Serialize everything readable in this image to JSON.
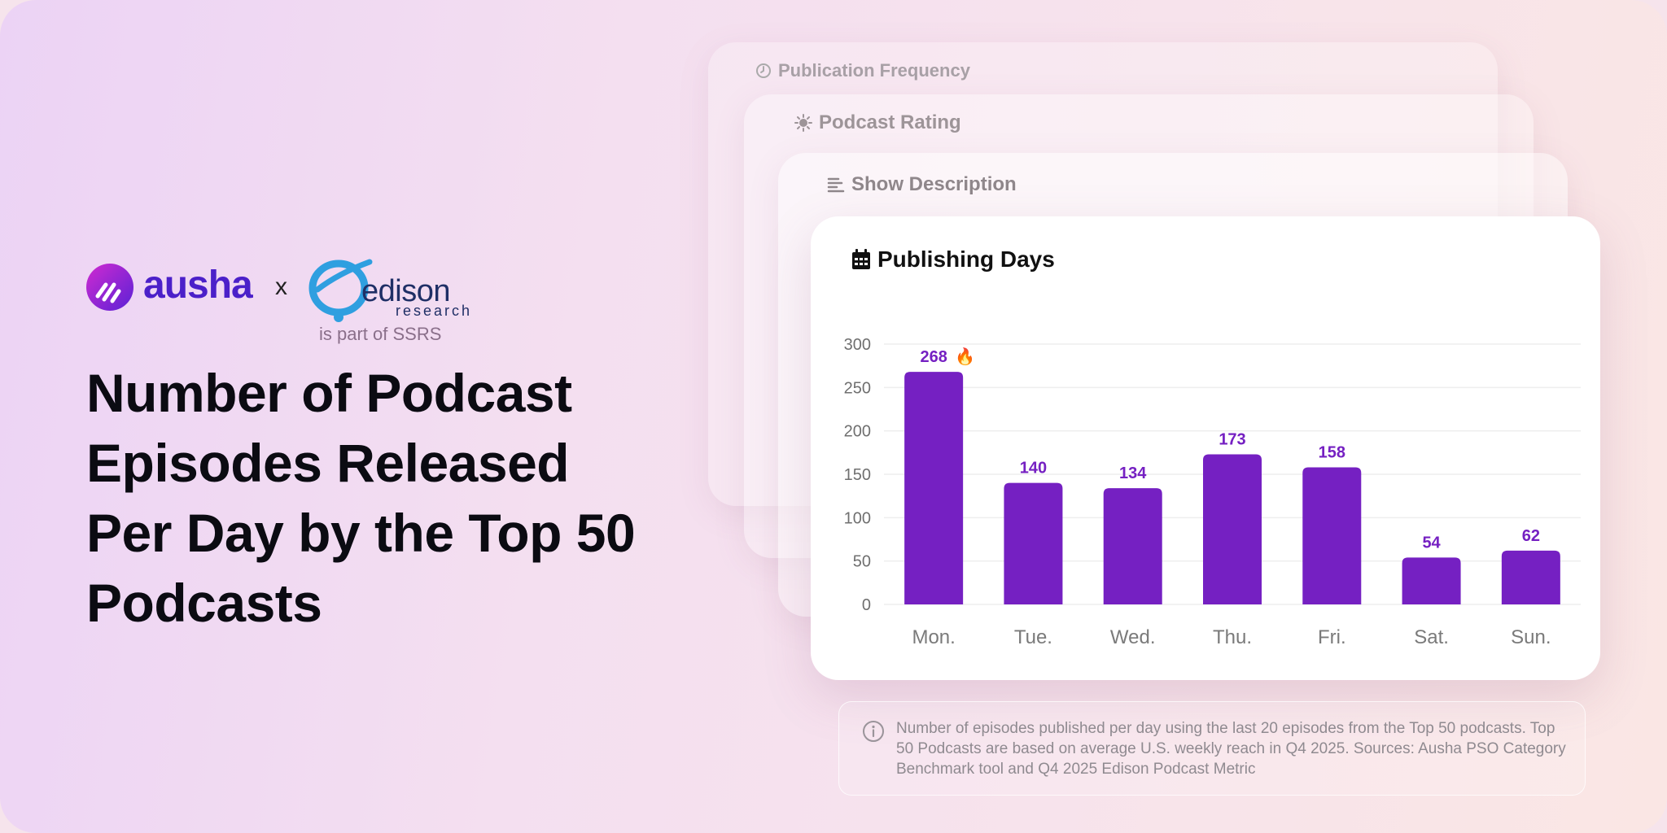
{
  "brand": {
    "ausha": "ausha",
    "times": "x",
    "edison": "edison",
    "research": "research",
    "ssrs": "is part of SSRS",
    "ausha_color": "#4b20c9",
    "edison_color": "#2f9fe0"
  },
  "headline": "Number of Podcast Episodes Released Per Day by the Top 50 Podcasts",
  "cards": [
    {
      "title": "Publication Frequency",
      "icon": "clock-icon"
    },
    {
      "title": "Podcast Rating",
      "icon": "sun-icon"
    },
    {
      "title": "Show Description",
      "icon": "text-lines-icon"
    }
  ],
  "main_card": {
    "title": "Publishing Days",
    "icon": "calendar-icon"
  },
  "chart_data": {
    "type": "bar",
    "title": "Publishing Days",
    "xlabel": "",
    "ylabel": "",
    "categories": [
      "Mon.",
      "Tue.",
      "Wed.",
      "Thu.",
      "Fri.",
      "Sat.",
      "Sun."
    ],
    "values": [
      268,
      140,
      134,
      173,
      158,
      54,
      62
    ],
    "data_labels": [
      "268",
      "140",
      "134",
      "173",
      "158",
      "54",
      "62"
    ],
    "highlight_marker": "🔥",
    "yticks": [
      0,
      50,
      100,
      150,
      200,
      250,
      300
    ],
    "ylim": [
      0,
      300
    ],
    "grid": true,
    "legend": "none",
    "bar_color": "#7520c2",
    "label_color": "#7520c2"
  },
  "footnote": "Number of episodes published per day using the last 20 episodes from the Top 50 podcasts. Top 50 Podcasts are based on average U.S. weekly reach in Q4 2025. Sources: Ausha PSO Category Benchmark tool and Q4 2025 Edison Podcast Metric"
}
